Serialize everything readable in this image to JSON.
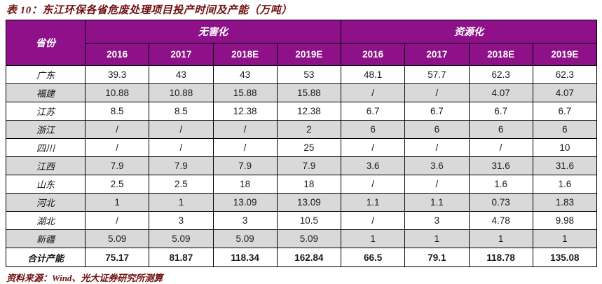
{
  "title": "表 10：东江环保各省危废处理项目投产时间及产能（万吨）",
  "source_note": "资料来源：Wind、光大证券研究所测算",
  "colors": {
    "header_bg": "#8E1189",
    "header_text": "#FFFFFF",
    "stripe_bg": "#D9D9D9",
    "accent_dark_red": "#701010",
    "border": "#000000"
  },
  "table": {
    "corner_header": "省份",
    "groups": [
      {
        "label": "无害化"
      },
      {
        "label": "资源化"
      }
    ],
    "year_headers": [
      "2016",
      "2017",
      "2018E",
      "2019E",
      "2016",
      "2017",
      "2018E",
      "2019E"
    ],
    "rows": [
      {
        "label": "广东",
        "values": [
          "39.3",
          "43",
          "43",
          "53",
          "48.1",
          "57.7",
          "62.3",
          "62.3"
        ]
      },
      {
        "label": "福建",
        "values": [
          "10.88",
          "10.88",
          "15.88",
          "15.88",
          "/",
          "/",
          "4.07",
          "4.07"
        ]
      },
      {
        "label": "江苏",
        "values": [
          "8.5",
          "8.5",
          "12.38",
          "12.38",
          "6.7",
          "6.7",
          "6.7",
          "6.7"
        ]
      },
      {
        "label": "浙江",
        "values": [
          "/",
          "/",
          "/",
          "2",
          "6",
          "6",
          "6",
          "6"
        ]
      },
      {
        "label": "四川",
        "values": [
          "/",
          "/",
          "/",
          "25",
          "/",
          "/",
          "/",
          "10"
        ]
      },
      {
        "label": "江西",
        "values": [
          "7.9",
          "7.9",
          "7.9",
          "7.9",
          "3.6",
          "3.6",
          "31.6",
          "31.6"
        ]
      },
      {
        "label": "山东",
        "values": [
          "2.5",
          "2.5",
          "18",
          "18",
          "/",
          "/",
          "1.6",
          "1.6"
        ]
      },
      {
        "label": "河北",
        "values": [
          "1",
          "1",
          "13.09",
          "13.09",
          "1.1",
          "1.1",
          "0.73",
          "1.83"
        ]
      },
      {
        "label": "湖北",
        "values": [
          "/",
          "3",
          "3",
          "10.5",
          "/",
          "3",
          "4.78",
          "9.98"
        ]
      },
      {
        "label": "新疆",
        "values": [
          "5.09",
          "5.09",
          "5.09",
          "5.09",
          "1",
          "1",
          "1",
          "1"
        ]
      },
      {
        "label": "合计产能",
        "values": [
          "75.17",
          "81.87",
          "118.34",
          "162.84",
          "66.5",
          "79.1",
          "118.78",
          "135.08"
        ],
        "is_total": true
      }
    ]
  }
}
